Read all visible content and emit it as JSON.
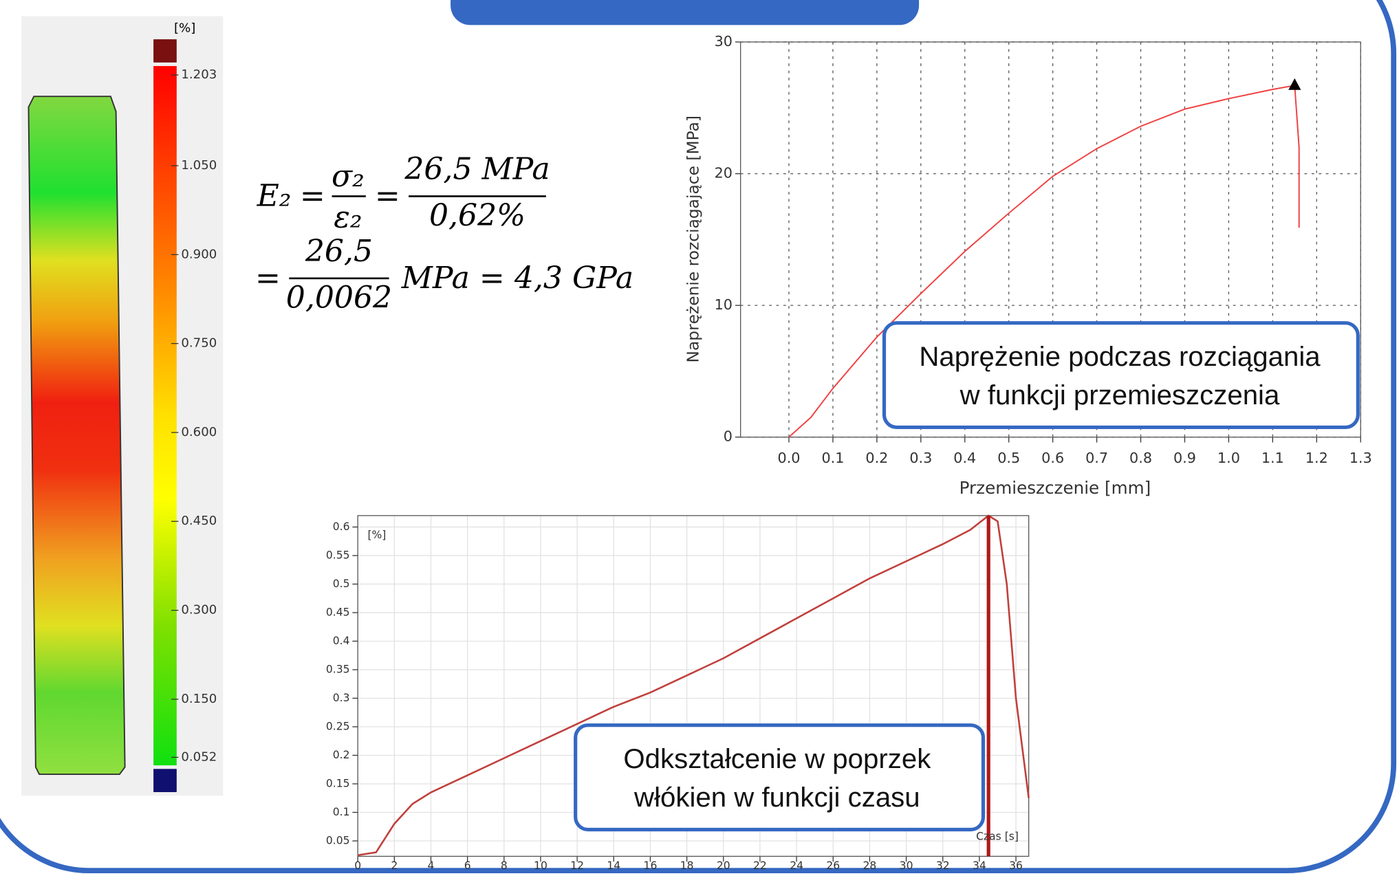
{
  "chart_data": [
    {
      "type": "line",
      "x_label": "Przemieszczenie [mm]",
      "y_label": "Naprężenie rozciągające [MPa]",
      "color": "#f04040",
      "x": [
        0,
        0.05,
        0.1,
        0.2,
        0.3,
        0.4,
        0.5,
        0.6,
        0.7,
        0.8,
        0.9,
        1.0,
        1.1,
        1.15,
        1.16,
        1.16
      ],
      "values": [
        0,
        1.5,
        3.7,
        7.6,
        10.9,
        14.1,
        17.0,
        19.8,
        21.9,
        23.6,
        24.9,
        25.7,
        26.4,
        26.7,
        22,
        15.9
      ],
      "peak": {
        "x": 1.15,
        "y": 26.7
      },
      "xlim": [
        -0.11,
        1.3
      ],
      "ylim": [
        0,
        30
      ],
      "xticks": [
        {
          "value": 0,
          "label": "0.0"
        },
        0.1,
        0.2,
        0.3,
        0.4,
        0.5,
        0.6,
        0.7,
        0.8,
        0.9,
        {
          "value": 1,
          "label": "1.0"
        },
        1.1,
        1.2,
        1.3
      ],
      "yticks": [
        0,
        10,
        20,
        30
      ],
      "grid": true,
      "annotation": [
        "Naprężenie podczas rozciągania",
        "w funkcji przemieszczenia"
      ]
    },
    {
      "type": "line",
      "x_label": "Czas [s]",
      "y_unit": "[%]",
      "color": "#c0403c",
      "x": [
        0,
        1,
        2,
        3,
        4,
        6,
        8,
        10,
        12,
        14,
        16,
        18,
        20,
        22,
        24,
        26,
        28,
        30,
        32,
        33.5,
        34.5,
        35,
        35.5,
        36,
        36.7
      ],
      "values": [
        0.025,
        0.03,
        0.08,
        0.115,
        0.135,
        0.165,
        0.195,
        0.225,
        0.255,
        0.285,
        0.31,
        0.34,
        0.37,
        0.405,
        0.44,
        0.475,
        0.51,
        0.54,
        0.57,
        0.595,
        0.62,
        0.61,
        0.5,
        0.3,
        0.125
      ],
      "marker_x": 34.5,
      "xlim": [
        0,
        36.7
      ],
      "ylim": [
        0.023,
        0.62
      ],
      "xticks": [
        0,
        2,
        4,
        6,
        8,
        10,
        12,
        14,
        16,
        18,
        20,
        22,
        24,
        26,
        28,
        30,
        32,
        34,
        36
      ],
      "yticks": [
        0.05,
        0.1,
        0.15,
        0.2,
        0.25,
        0.3,
        0.35,
        0.4,
        0.45,
        0.5,
        0.55,
        0.6
      ],
      "grid": true,
      "annotation": [
        "Odkształcenie w poprzek",
        "włókien w funkcji czasu"
      ]
    }
  ],
  "colorbar": {
    "unit": "[%]",
    "ticks": [
      1.203,
      {
        "value": 1.05,
        "label": "1.050"
      },
      {
        "value": 0.9,
        "label": "0.900"
      },
      {
        "value": 0.75,
        "label": "0.750"
      },
      {
        "value": 0.6,
        "label": "0.600"
      },
      {
        "value": 0.45,
        "label": "0.450"
      },
      {
        "value": 0.3,
        "label": "0.300"
      },
      {
        "value": 0.15,
        "label": "0.150"
      },
      0.052
    ]
  },
  "formula": {
    "line1": [
      "E₂",
      "=",
      "σ₂",
      "ε₂",
      "=",
      "26,5 MPa",
      "0,62%"
    ],
    "line2": [
      "=",
      "26,5",
      "0,0062",
      "MPa = 4,3 GPa"
    ]
  }
}
